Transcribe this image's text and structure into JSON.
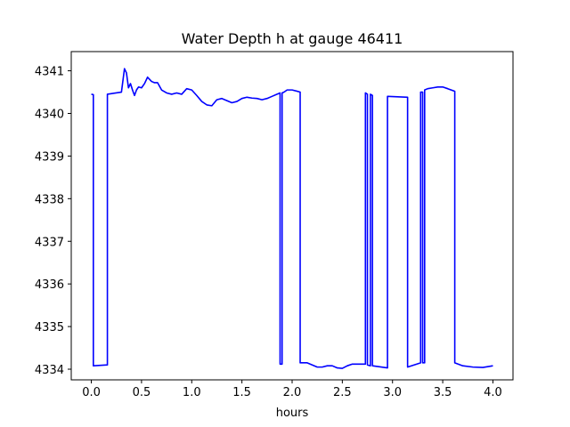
{
  "chart_data": {
    "type": "line",
    "title": "Water Depth h at gauge 46411",
    "xlabel": "hours",
    "ylabel": "",
    "xlim": [
      -0.2,
      4.2
    ],
    "ylim": [
      4333.75,
      4341.45
    ],
    "xticks": [
      0.0,
      0.5,
      1.0,
      1.5,
      2.0,
      2.5,
      3.0,
      3.5,
      4.0
    ],
    "xtick_labels": [
      "0.0",
      "0.5",
      "1.0",
      "1.5",
      "2.0",
      "2.5",
      "3.0",
      "3.5",
      "4.0"
    ],
    "yticks": [
      4334,
      4335,
      4336,
      4337,
      4338,
      4339,
      4340,
      4341
    ],
    "ytick_labels": [
      "4334",
      "4335",
      "4336",
      "4337",
      "4338",
      "4339",
      "4340",
      "4341"
    ],
    "grid": false,
    "series": [
      {
        "color": "#0000ff",
        "x": [
          0.0,
          0.02,
          0.02,
          0.16,
          0.16,
          0.3,
          0.33,
          0.35,
          0.37,
          0.39,
          0.41,
          0.43,
          0.45,
          0.47,
          0.5,
          0.53,
          0.56,
          0.58,
          0.6,
          0.63,
          0.66,
          0.7,
          0.75,
          0.8,
          0.85,
          0.9,
          0.95,
          1.0,
          1.05,
          1.1,
          1.15,
          1.2,
          1.25,
          1.3,
          1.35,
          1.4,
          1.45,
          1.5,
          1.55,
          1.6,
          1.65,
          1.7,
          1.75,
          1.8,
          1.85,
          1.88,
          1.88,
          1.9,
          1.9,
          1.92,
          1.95,
          2.0,
          2.05,
          2.08,
          2.08,
          2.15,
          2.2,
          2.25,
          2.3,
          2.35,
          2.4,
          2.45,
          2.5,
          2.55,
          2.6,
          2.65,
          2.7,
          2.73,
          2.73,
          2.75,
          2.75,
          2.78,
          2.78,
          2.8,
          2.8,
          2.95,
          2.95,
          3.15,
          3.15,
          3.28,
          3.28,
          3.3,
          3.3,
          3.32,
          3.32,
          3.35,
          3.4,
          3.45,
          3.5,
          3.55,
          3.62,
          3.62,
          3.7,
          3.8,
          3.9,
          4.0
        ],
        "y": [
          4340.45,
          4340.44,
          4334.08,
          4334.1,
          4340.45,
          4340.5,
          4341.05,
          4340.95,
          4340.6,
          4340.7,
          4340.55,
          4340.42,
          4340.55,
          4340.62,
          4340.6,
          4340.7,
          4340.85,
          4340.8,
          4340.75,
          4340.72,
          4340.72,
          4340.55,
          4340.48,
          4340.45,
          4340.48,
          4340.45,
          4340.58,
          4340.55,
          4340.42,
          4340.28,
          4340.2,
          4340.18,
          4340.32,
          4340.35,
          4340.3,
          4340.25,
          4340.28,
          4340.35,
          4340.38,
          4340.36,
          4340.35,
          4340.32,
          4340.35,
          4340.4,
          4340.45,
          4340.48,
          4334.12,
          4334.12,
          4340.48,
          4340.5,
          4340.55,
          4340.55,
          4340.52,
          4340.5,
          4334.15,
          4334.15,
          4334.1,
          4334.05,
          4334.05,
          4334.08,
          4334.08,
          4334.03,
          4334.02,
          4334.08,
          4334.12,
          4334.12,
          4334.12,
          4334.12,
          4340.48,
          4340.45,
          4334.1,
          4334.08,
          4340.45,
          4340.42,
          4334.08,
          4334.03,
          4340.4,
          4340.38,
          4334.05,
          4334.15,
          4340.5,
          4340.5,
          4334.15,
          4334.15,
          4340.55,
          4340.58,
          4340.6,
          4340.62,
          4340.62,
          4340.58,
          4340.52,
          4334.15,
          4334.08,
          4334.05,
          4334.04,
          4334.08
        ]
      }
    ]
  }
}
